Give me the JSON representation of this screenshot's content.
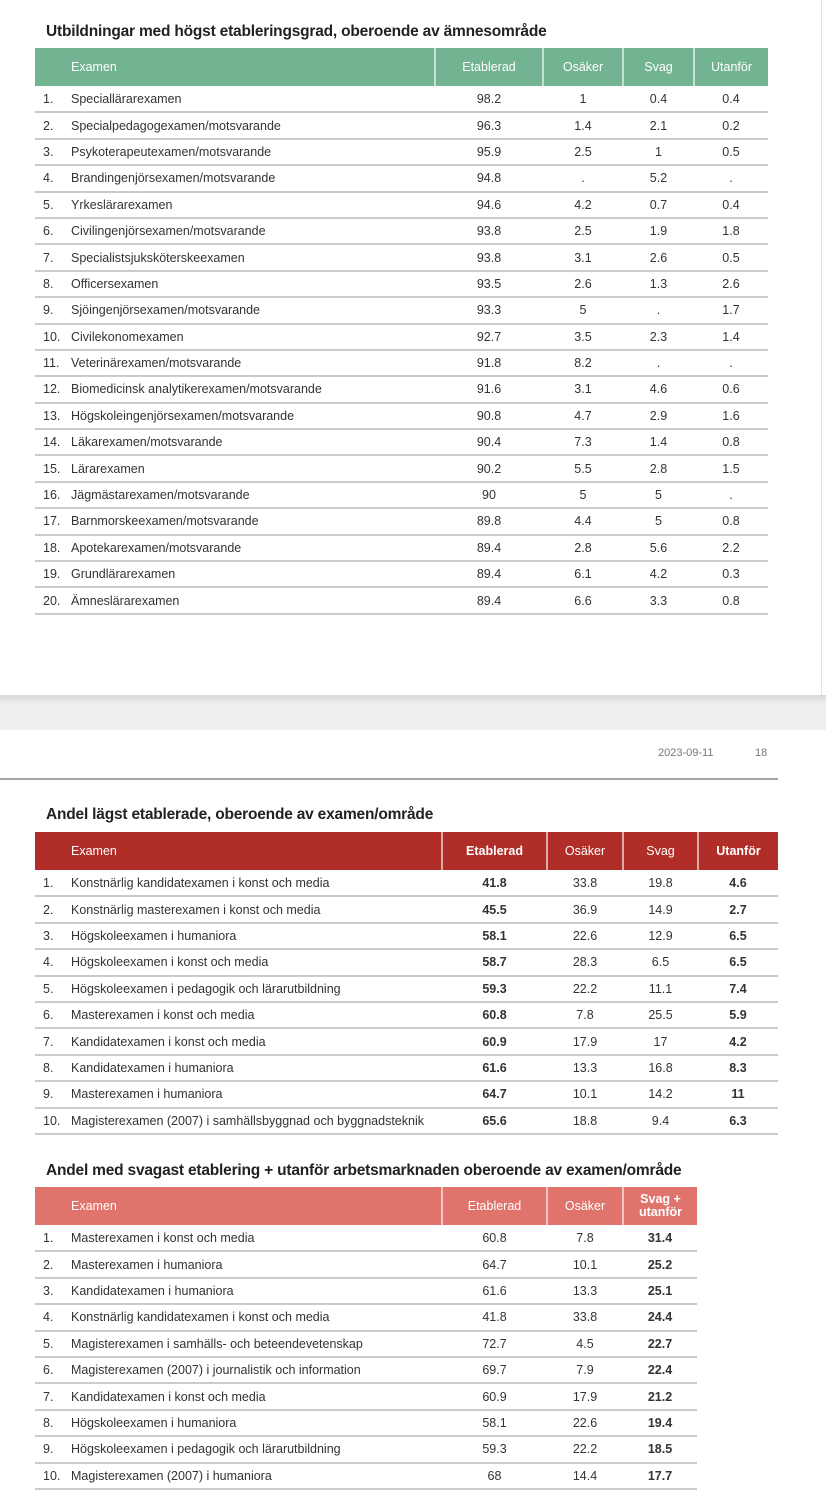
{
  "table1": {
    "title": "Utbildningar med högst etableringsgrad, oberoende av ämnesområde",
    "headers": [
      "Examen",
      "Etablerad",
      "Osäker",
      "Svag",
      "Utanför"
    ],
    "rows": [
      [
        "1.",
        "Speciallärarexamen",
        "98.2",
        "1",
        "0.4",
        "0.4"
      ],
      [
        "2.",
        "Specialpedagogexamen/motsvarande",
        "96.3",
        "1.4",
        "2.1",
        "0.2"
      ],
      [
        "3.",
        "Psykoterapeutexamen/motsvarande",
        "95.9",
        "2.5",
        "1",
        "0.5"
      ],
      [
        "4.",
        "Brandingenjörsexamen/motsvarande",
        "94.8",
        ".",
        "5.2",
        "."
      ],
      [
        "5.",
        "Yrkeslärarexamen",
        "94.6",
        "4.2",
        "0.7",
        "0.4"
      ],
      [
        "6.",
        "Civilingenjörsexamen/motsvarande",
        "93.8",
        "2.5",
        "1.9",
        "1.8"
      ],
      [
        "7.",
        "Specialistsjuksköterskeexamen",
        "93.8",
        "3.1",
        "2.6",
        "0.5"
      ],
      [
        "8.",
        "Officersexamen",
        "93.5",
        "2.6",
        "1.3",
        "2.6"
      ],
      [
        "9.",
        "Sjöingenjörsexamen/motsvarande",
        "93.3",
        "5",
        ".",
        "1.7"
      ],
      [
        "10.",
        "Civilekonomexamen",
        "92.7",
        "3.5",
        "2.3",
        "1.4"
      ],
      [
        "11.",
        "Veterinärexamen/motsvarande",
        "91.8",
        "8.2",
        ".",
        "."
      ],
      [
        "12.",
        "Biomedicinsk analytikerexamen/motsvarande",
        "91.6",
        "3.1",
        "4.6",
        "0.6"
      ],
      [
        "13.",
        "Högskoleingenjörsexamen/motsvarande",
        "90.8",
        "4.7",
        "2.9",
        "1.6"
      ],
      [
        "14.",
        "Läkarexamen/motsvarande",
        "90.4",
        "7.3",
        "1.4",
        "0.8"
      ],
      [
        "15.",
        "Lärarexamen",
        "90.2",
        "5.5",
        "2.8",
        "1.5"
      ],
      [
        "16.",
        "Jägmästarexamen/motsvarande",
        "90",
        "5",
        "5",
        "."
      ],
      [
        "17.",
        "Barnmorskeexamen/motsvarande",
        "89.8",
        "4.4",
        "5",
        "0.8"
      ],
      [
        "18.",
        "Apotekarexamen/motsvarande",
        "89.4",
        "2.8",
        "5.6",
        "2.2"
      ],
      [
        "19.",
        "Grundlärarexamen",
        "89.4",
        "6.1",
        "4.2",
        "0.3"
      ],
      [
        "20.",
        "Ämneslärarexamen",
        "89.4",
        "6.6",
        "3.3",
        "0.8"
      ]
    ]
  },
  "footer": {
    "date": "2023-09-11",
    "page": "18"
  },
  "table2": {
    "title": "Andel lägst etablerade, oberoende av examen/område",
    "headers": [
      "Examen",
      "Etablerad",
      "Osäker",
      "Svag",
      "Utanför"
    ],
    "rows": [
      [
        "1.",
        "Konstnärlig kandidatexamen i konst och media",
        "41.8",
        "33.8",
        "19.8",
        "4.6"
      ],
      [
        "2.",
        "Konstnärlig masterexamen i konst och media",
        "45.5",
        "36.9",
        "14.9",
        "2.7"
      ],
      [
        "3.",
        "Högskoleexamen i humaniora",
        "58.1",
        "22.6",
        "12.9",
        "6.5"
      ],
      [
        "4.",
        "Högskoleexamen i konst och media",
        "58.7",
        "28.3",
        "6.5",
        "6.5"
      ],
      [
        "5.",
        "Högskoleexamen i pedagogik och lärarutbildning",
        "59.3",
        "22.2",
        "11.1",
        "7.4"
      ],
      [
        "6.",
        "Masterexamen i konst och media",
        "60.8",
        "7.8",
        "25.5",
        "5.9"
      ],
      [
        "7.",
        "Kandidatexamen i konst och media",
        "60.9",
        "17.9",
        "17",
        "4.2"
      ],
      [
        "8.",
        "Kandidatexamen i humaniora",
        "61.6",
        "13.3",
        "16.8",
        "8.3"
      ],
      [
        "9.",
        "Masterexamen i humaniora",
        "64.7",
        "10.1",
        "14.2",
        "11"
      ],
      [
        "10.",
        "Magisterexamen (2007) i samhällsbyggnad och byggnadsteknik",
        "65.6",
        "18.8",
        "9.4",
        "6.3"
      ]
    ]
  },
  "table3": {
    "title": "Andel med svagast etablering + utanför arbetsmarknaden oberoende av examen/område",
    "headers": [
      "Examen",
      "Etablerad",
      "Osäker",
      "Svag +",
      "utanför"
    ],
    "rows": [
      [
        "1.",
        "Masterexamen i konst och media",
        "60.8",
        "7.8",
        "31.4"
      ],
      [
        "2.",
        "Masterexamen i humaniora",
        "64.7",
        "10.1",
        "25.2"
      ],
      [
        "3.",
        "Kandidatexamen i humaniora",
        "61.6",
        "13.3",
        "25.1"
      ],
      [
        "4.",
        "Konstnärlig kandidatexamen i konst och media",
        "41.8",
        "33.8",
        "24.4"
      ],
      [
        "5.",
        "Magisterexamen i samhälls- och beteendevetenskap",
        "72.7",
        "4.5",
        "22.7"
      ],
      [
        "6.",
        "Magisterexamen (2007) i journalistik och information",
        "69.7",
        "7.9",
        "22.4"
      ],
      [
        "7.",
        "Kandidatexamen i konst och media",
        "60.9",
        "17.9",
        "21.2"
      ],
      [
        "8.",
        "Högskoleexamen i humaniora",
        "58.1",
        "22.6",
        "19.4"
      ],
      [
        "9.",
        "Högskoleexamen i pedagogik och lärarutbildning",
        "59.3",
        "22.2",
        "18.5"
      ],
      [
        "10.",
        "Magisterexamen (2007) i humaniora",
        "68",
        "14.4",
        "17.7"
      ]
    ]
  }
}
